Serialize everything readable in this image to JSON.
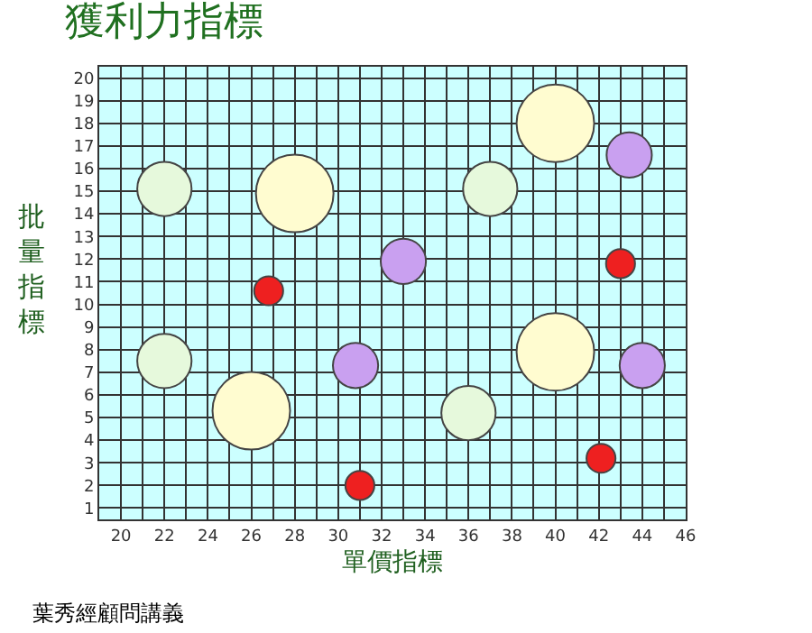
{
  "chart_data": {
    "type": "bubble",
    "title": "獲利力指標",
    "xlabel": "單價指標",
    "ylabel": "批量指標",
    "xlim": [
      19,
      46
    ],
    "xticks": [
      20,
      22,
      24,
      26,
      28,
      30,
      32,
      34,
      36,
      38,
      40,
      42,
      44,
      46
    ],
    "ylim": [
      0.5,
      20.5
    ],
    "yticks": [
      1,
      2,
      3,
      4,
      5,
      6,
      7,
      8,
      9,
      10,
      11,
      12,
      13,
      14,
      15,
      16,
      17,
      18,
      19,
      20
    ],
    "grid": true,
    "series": [
      {
        "color": "#e6f9dc",
        "x": [
          22,
          37,
          22,
          36
        ],
        "values": [
          15.1,
          15.1,
          7.5,
          5.2
        ],
        "sizes": [
          0.49,
          0.49,
          0.49,
          0.49
        ]
      },
      {
        "color": "#fffcd0",
        "x": [
          28,
          40,
          26,
          40
        ],
        "values": [
          14.9,
          18,
          5.3,
          7.9
        ],
        "sizes": [
          1,
          1,
          1,
          1
        ]
      },
      {
        "color": "#c9a0f0",
        "x": [
          33,
          43.4,
          30.8,
          44
        ],
        "values": [
          11.9,
          16.6,
          7.3,
          7.3
        ],
        "sizes": [
          0.34,
          0.34,
          0.34,
          0.34
        ]
      },
      {
        "color": "#ee2020",
        "x": [
          26.8,
          43,
          31,
          42.1
        ],
        "values": [
          10.6,
          11.8,
          2,
          3.2
        ],
        "sizes": [
          0.14,
          0.14,
          0.14,
          0.14
        ]
      }
    ],
    "annotations": [
      "葉秀經顧問講義"
    ]
  }
}
